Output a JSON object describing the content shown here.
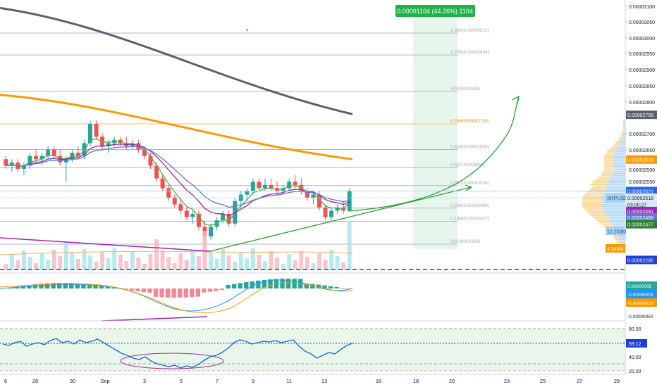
{
  "projection_box": {
    "label": "0.00001104 (44.26%) 1104"
  },
  "fib_levels": [
    {
      "label": "1.382(0.00003012)",
      "price": 3.012e-05
    },
    {
      "label": "1.236(0.00002944)",
      "price": 2.944e-05
    },
    {
      "label": "1(0.00002831)",
      "price": 2.831e-05
    },
    {
      "label": "0.786(0.00002730)",
      "price": 2.73e-05,
      "highlight": true
    },
    {
      "label": "0.618(0.00002650)",
      "price": 2.65e-05
    },
    {
      "label": "0.5(0.00002594)",
      "price": 2.594e-05
    },
    {
      "label": "0.382(0.00002538)",
      "price": 2.538e-05
    },
    {
      "label": "0.236(0.00002468)",
      "price": 2.468e-05
    },
    {
      "label": "0.148(0.00002427)",
      "price": 2.427e-05
    },
    {
      "label": "0(0.00002356)",
      "price": 2.356e-05
    }
  ],
  "price_axis": {
    "ticks": [
      "0.00003100",
      "0.00003050",
      "0.00003000",
      "0.00002950",
      "0.00002900",
      "0.00002850",
      "0.00002800",
      "0.00002700",
      "0.00002650",
      "0.00002590",
      "0.00002550"
    ]
  },
  "price_tags": [
    {
      "text": "0.00002758",
      "price": 2.758e-05,
      "bg": "#5d606b",
      "fg": "#ffffff"
    },
    {
      "text": "0.00002619",
      "price": 2.619e-05,
      "bg": "#ff9800",
      "fg": "#ffffff"
    },
    {
      "text": "0.00002521",
      "price": 2.521e-05,
      "bg": "#2962ff",
      "fg": "#ffffff"
    },
    {
      "text": "XRPUSD",
      "price": 2.5e-05,
      "bg": "#a7d3f5",
      "fg": "#1e4f8a",
      "left": true
    },
    {
      "text": "0.00002518",
      "price": 2.5e-05,
      "bg": "#d8ecfa",
      "fg": "#131722"
    },
    {
      "text": "03:00:27",
      "price": 2.48e-05,
      "bg": "#d8ecfa",
      "fg": "#131722"
    },
    {
      "text": "0.00002491",
      "price": 2.459e-05,
      "bg": "#9c27b0",
      "fg": "#ffffff"
    },
    {
      "text": "0.00002488",
      "price": 2.439e-05,
      "bg": "#5b7bd5",
      "fg": "#ffffff"
    },
    {
      "text": "0.00002477",
      "price": 2.418e-05,
      "bg": "#2e7d32",
      "fg": "#ffffff"
    },
    {
      "text": "12.203M",
      "price": 2.397e-05,
      "bg": "#a7d3f5",
      "fg": "#1e4f8a",
      "left": true
    },
    {
      "text": "4.548M",
      "price": 2.343e-05,
      "bg": "#ff9800",
      "fg": "#ffffff",
      "left": true
    },
    {
      "text": "0.00002290",
      "price": 2.307e-05,
      "bg": "#1e3fd8",
      "fg": "#ffffff"
    }
  ],
  "macd_axis": {
    "tags": [
      {
        "text": "0.00000005",
        "bg": "#26a69a",
        "fg": "#ffffff"
      },
      {
        "text": "-0.00000005",
        "bg": "#2196f3",
        "fg": "#ffffff"
      },
      {
        "text": "-0.00000010",
        "bg": "#ff9800",
        "fg": "#ffffff"
      }
    ],
    "bottom_label": "-0.00000050"
  },
  "rsi_axis": {
    "ticks": [
      "80.00",
      "40.00",
      "20.00"
    ],
    "value_tag": "59.12"
  },
  "time_axis": {
    "labels": [
      "6",
      "28",
      "30",
      "Sep",
      "3",
      "5",
      "7",
      "9",
      "11",
      "13",
      "16",
      "18",
      "20",
      "23",
      "25",
      "27",
      "29"
    ]
  },
  "chart_data": [
    {
      "type": "candlestick",
      "title": "",
      "series_name": "XRPUSD",
      "ylim": [
        2.29e-05,
        3.12e-05
      ],
      "horizontal_lines": [
        2.29e-05
      ],
      "x_labels": [
        "6",
        "28",
        "30",
        "Sep",
        "3",
        "5",
        "7",
        "9",
        "11",
        "13",
        "16",
        "18",
        "20",
        "23",
        "25",
        "27",
        "29"
      ],
      "candles": [
        [
          2.62e-05,
          2.63e-05,
          2.59e-05,
          2.6e-05
        ],
        [
          2.6e-05,
          2.62e-05,
          2.58e-05,
          2.61e-05
        ],
        [
          2.61e-05,
          2.62e-05,
          2.58e-05,
          2.59e-05
        ],
        [
          2.59e-05,
          2.61e-05,
          2.57e-05,
          2.6e-05
        ],
        [
          2.6e-05,
          2.64e-05,
          2.59e-05,
          2.63e-05
        ],
        [
          2.63e-05,
          2.65e-05,
          2.61e-05,
          2.62e-05
        ],
        [
          2.62e-05,
          2.64e-05,
          2.6e-05,
          2.63e-05
        ],
        [
          2.63e-05,
          2.66e-05,
          2.62e-05,
          2.65e-05
        ],
        [
          2.65e-05,
          2.66e-05,
          2.62e-05,
          2.63e-05
        ],
        [
          2.63e-05,
          2.65e-05,
          2.6e-05,
          2.61e-05
        ],
        [
          2.61e-05,
          2.63e-05,
          2.55e-05,
          2.62e-05
        ],
        [
          2.62e-05,
          2.65e-05,
          2.61e-05,
          2.64e-05
        ],
        [
          2.64e-05,
          2.66e-05,
          2.62e-05,
          2.63e-05
        ],
        [
          2.63e-05,
          2.68e-05,
          2.62e-05,
          2.67e-05
        ],
        [
          2.67e-05,
          2.74e-05,
          2.66e-05,
          2.73e-05
        ],
        [
          2.73e-05,
          2.74e-05,
          2.68e-05,
          2.69e-05
        ],
        [
          2.69e-05,
          2.7e-05,
          2.65e-05,
          2.66e-05
        ],
        [
          2.66e-05,
          2.68e-05,
          2.64e-05,
          2.67e-05
        ],
        [
          2.67e-05,
          2.69e-05,
          2.66e-05,
          2.68e-05
        ],
        [
          2.68e-05,
          2.69e-05,
          2.66e-05,
          2.67e-05
        ],
        [
          2.67e-05,
          2.69e-05,
          2.65e-05,
          2.66e-05
        ],
        [
          2.66e-05,
          2.68e-05,
          2.65e-05,
          2.67e-05
        ],
        [
          2.67e-05,
          2.68e-05,
          2.64e-05,
          2.65e-05
        ],
        [
          2.65e-05,
          2.66e-05,
          2.62e-05,
          2.63e-05
        ],
        [
          2.63e-05,
          2.64e-05,
          2.59e-05,
          2.6e-05
        ],
        [
          2.6e-05,
          2.61e-05,
          2.55e-05,
          2.56e-05
        ],
        [
          2.56e-05,
          2.57e-05,
          2.52e-05,
          2.53e-05
        ],
        [
          2.53e-05,
          2.54e-05,
          2.49e-05,
          2.5e-05
        ],
        [
          2.5e-05,
          2.51e-05,
          2.47e-05,
          2.48e-05
        ],
        [
          2.48e-05,
          2.5e-05,
          2.45e-05,
          2.46e-05
        ],
        [
          2.46e-05,
          2.47e-05,
          2.43e-05,
          2.44e-05
        ],
        [
          2.44e-05,
          2.46e-05,
          2.42e-05,
          2.45e-05
        ],
        [
          2.45e-05,
          2.46e-05,
          2.4e-05,
          2.41e-05
        ],
        [
          2.41e-05,
          2.43e-05,
          2.36e-05,
          2.38e-05
        ],
        [
          2.38e-05,
          2.42e-05,
          2.37e-05,
          2.41e-05
        ],
        [
          2.41e-05,
          2.44e-05,
          2.4e-05,
          2.43e-05
        ],
        [
          2.43e-05,
          2.46e-05,
          2.42e-05,
          2.45e-05
        ],
        [
          2.45e-05,
          2.46e-05,
          2.41e-05,
          2.42e-05
        ],
        [
          2.42e-05,
          2.5e-05,
          2.41e-05,
          2.49e-05
        ],
        [
          2.49e-05,
          2.52e-05,
          2.47e-05,
          2.51e-05
        ],
        [
          2.51e-05,
          2.53e-05,
          2.49e-05,
          2.52e-05
        ],
        [
          2.52e-05,
          2.56e-05,
          2.51e-05,
          2.55e-05
        ],
        [
          2.55e-05,
          2.56e-05,
          2.52e-05,
          2.53e-05
        ],
        [
          2.53e-05,
          2.56e-05,
          2.52e-05,
          2.54e-05
        ],
        [
          2.54e-05,
          2.56e-05,
          2.52e-05,
          2.53e-05
        ],
        [
          2.53e-05,
          2.55e-05,
          2.51e-05,
          2.52e-05
        ],
        [
          2.52e-05,
          2.54e-05,
          2.51e-05,
          2.53e-05
        ],
        [
          2.53e-05,
          2.56e-05,
          2.52e-05,
          2.55e-05
        ],
        [
          2.55e-05,
          2.57e-05,
          2.53e-05,
          2.54e-05
        ],
        [
          2.54e-05,
          2.56e-05,
          2.51e-05,
          2.52e-05
        ],
        [
          2.52e-05,
          2.53e-05,
          2.49e-05,
          2.5e-05
        ],
        [
          2.5e-05,
          2.52e-05,
          2.48e-05,
          2.51e-05
        ],
        [
          2.51e-05,
          2.52e-05,
          2.46e-05,
          2.47e-05
        ],
        [
          2.47e-05,
          2.48e-05,
          2.43e-05,
          2.44e-05
        ],
        [
          2.44e-05,
          2.47e-05,
          2.43e-05,
          2.46e-05
        ],
        [
          2.46e-05,
          2.48e-05,
          2.45e-05,
          2.47e-05
        ],
        [
          2.47e-05,
          2.49e-05,
          2.45e-05,
          2.46e-05
        ],
        [
          2.46e-05,
          2.53e-05,
          2.46e-05,
          2.52e-05
        ]
      ],
      "moving_averages": [
        {
          "color": "#5d606b",
          "from": 3.09e-05,
          "to": 2.76e-05
        },
        {
          "color": "#ff9800",
          "from": 2.82e-05,
          "to": 2.62e-05
        }
      ]
    },
    {
      "type": "line",
      "title": "",
      "ylabel": "RSI",
      "ylim": [
        15,
        85
      ],
      "reference_lines": [
        80,
        30,
        20
      ],
      "values": [
        58,
        56,
        60,
        62,
        55,
        58,
        60,
        57,
        63,
        66,
        60,
        62,
        58,
        64,
        60,
        62,
        65,
        60,
        55,
        50,
        45,
        42,
        38,
        36,
        40,
        34,
        30,
        28,
        26,
        28,
        24,
        27,
        25,
        29,
        35,
        40,
        42,
        46,
        52,
        60,
        64,
        62,
        58,
        60,
        62,
        61,
        63,
        60,
        62,
        64,
        55,
        48,
        44,
        38,
        42,
        46,
        44,
        50,
        56,
        59.12
      ]
    }
  ]
}
